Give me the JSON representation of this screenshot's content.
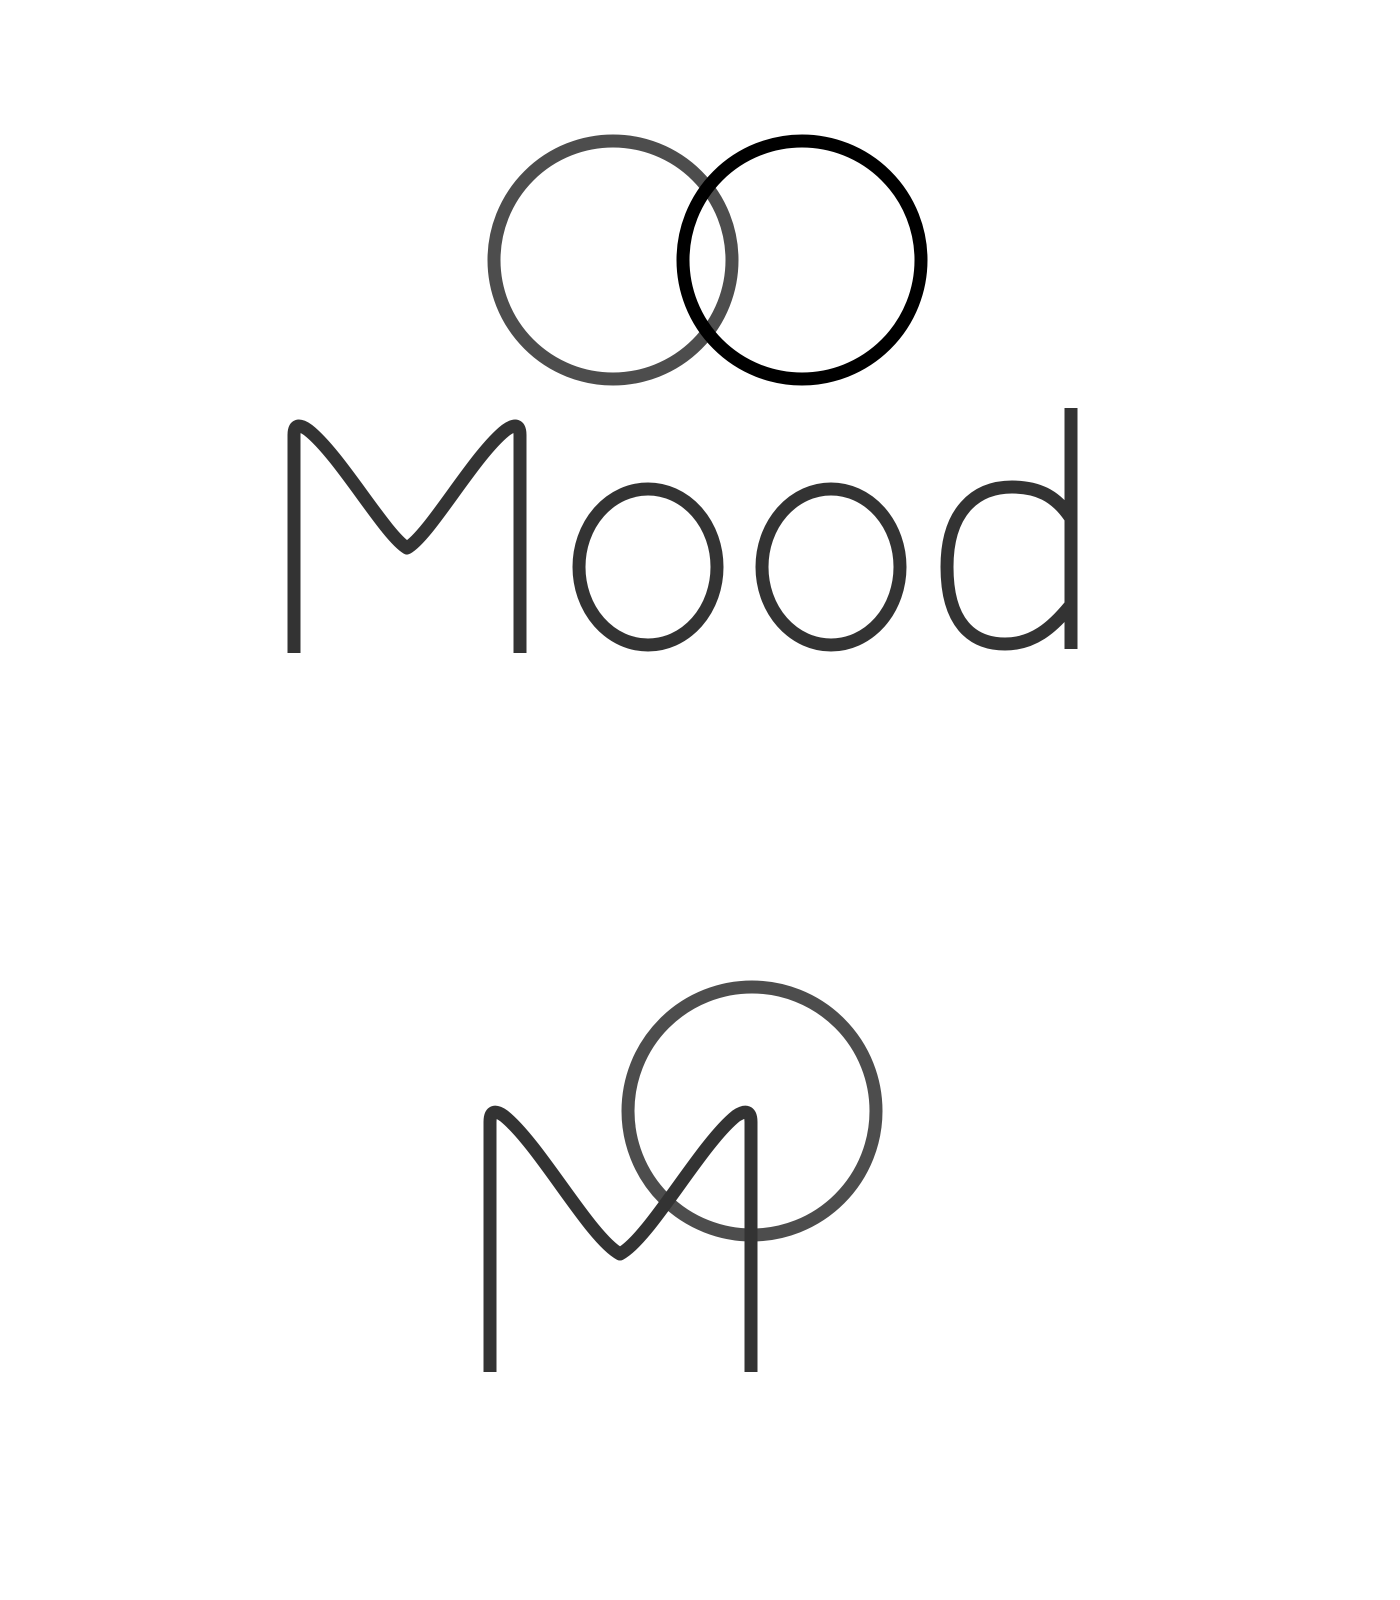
{
  "primary_logo": {
    "wordmark": "Mood",
    "rings": [
      {
        "name": "left-ring",
        "color": "#4d4d4d"
      },
      {
        "name": "right-ring",
        "color": "#000000"
      }
    ],
    "letter_color": "#333333"
  },
  "monogram": {
    "letter": "M",
    "ring_color": "#4d4d4d",
    "letter_color": "#333333"
  },
  "background_color": "#ffffff"
}
